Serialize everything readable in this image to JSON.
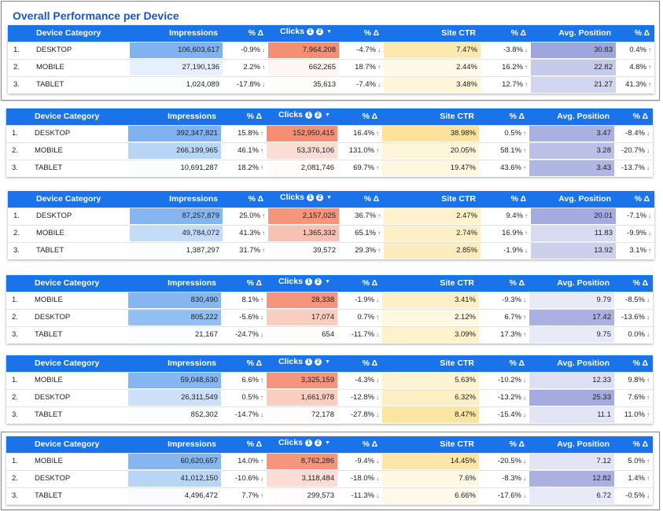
{
  "title": "Overall Performance per Device",
  "columns": {
    "device": "Device Category",
    "impressions": "Impressions",
    "delta": "% Δ",
    "clicks": "Clicks",
    "badge1": "1",
    "badge2": "2",
    "sort": "▼",
    "ctr": "Site CTR",
    "position": "Avg. Position"
  },
  "colors": {
    "header": "#1a73e8",
    "impressions": "#7fb2ef",
    "clicks": "#f48f76",
    "ctr": "#fbd66e",
    "position": "#8e96d6"
  },
  "tables": [
    {
      "rows": [
        {
          "idx": "1.",
          "device": "DESKTOP",
          "impressions": "106,603,617",
          "imp_d": "-0.9%",
          "imp_dir": "↓",
          "clicks": "7,964,208",
          "clk_d": "-4.7%",
          "clk_dir": "↓",
          "ctr": "7.47%",
          "ctr_d": "-3.8%",
          "ctr_dir": "↓",
          "pos": "30.83",
          "pos_d": "0.4%",
          "pos_dir": "↑",
          "imp_a": 1.0,
          "clk_a": 1.0,
          "ctr_a": 0.55,
          "pos_a": 0.85
        },
        {
          "idx": "2.",
          "device": "MOBILE",
          "impressions": "27,190,136",
          "imp_d": "2.2%",
          "imp_dir": "↑",
          "clicks": "662,265",
          "clk_d": "18.7%",
          "clk_dir": "↑",
          "ctr": "2.44%",
          "ctr_d": "16.2%",
          "ctr_dir": "↑",
          "pos": "22.82",
          "pos_d": "4.8%",
          "pos_dir": "↑",
          "imp_a": 0.2,
          "clk_a": 0.08,
          "ctr_a": 0.15,
          "pos_a": 0.5
        },
        {
          "idx": "3.",
          "device": "TABLET",
          "impressions": "1,024,089",
          "imp_d": "-17.8%",
          "imp_dir": "↓",
          "clicks": "35,613",
          "clk_d": "-7.4%",
          "clk_dir": "↓",
          "ctr": "3.48%",
          "ctr_d": "12.7%",
          "ctr_dir": "↑",
          "pos": "21.27",
          "pos_d": "41.3%",
          "pos_dir": "↑",
          "imp_a": 0.02,
          "clk_a": 0.02,
          "ctr_a": 0.25,
          "pos_a": 0.4
        }
      ]
    },
    {
      "rows": [
        {
          "idx": "1.",
          "device": "DESKTOP",
          "impressions": "392,347,821",
          "imp_d": "15.8%",
          "imp_dir": "↑",
          "clicks": "152,950,415",
          "clk_d": "16.4%",
          "clk_dir": "↑",
          "ctr": "38.98%",
          "ctr_d": "0.5%",
          "ctr_dir": "↑",
          "pos": "3.47",
          "pos_d": "-8.4%",
          "pos_dir": "↓",
          "imp_a": 1.0,
          "clk_a": 1.0,
          "ctr_a": 0.7,
          "pos_a": 0.75
        },
        {
          "idx": "2.",
          "device": "MOBILE",
          "impressions": "266,199,965",
          "imp_d": "46.1%",
          "imp_dir": "↑",
          "clicks": "53,376,106",
          "clk_d": "131.0%",
          "clk_dir": "↑",
          "ctr": "20.05%",
          "ctr_d": "58.1%",
          "ctr_dir": "↑",
          "pos": "3.28",
          "pos_d": "-20.7%",
          "pos_dir": "↓",
          "imp_a": 0.55,
          "clk_a": 0.3,
          "ctr_a": 0.25,
          "pos_a": 0.6
        },
        {
          "idx": "3.",
          "device": "TABLET",
          "impressions": "10,691,287",
          "imp_d": "18.2%",
          "imp_dir": "↑",
          "clicks": "2,081,746",
          "clk_d": "69.7%",
          "clk_dir": "↑",
          "ctr": "19.47%",
          "ctr_d": "43.6%",
          "ctr_dir": "↑",
          "pos": "3.43",
          "pos_d": "-13.7%",
          "pos_dir": "↓",
          "imp_a": 0.04,
          "clk_a": 0.03,
          "ctr_a": 0.22,
          "pos_a": 0.7
        }
      ]
    },
    {
      "rows": [
        {
          "idx": "1.",
          "device": "DESKTOP",
          "impressions": "87,257,879",
          "imp_d": "25.0%",
          "imp_dir": "↑",
          "clicks": "2,157,025",
          "clk_d": "36.7%",
          "clk_dir": "↑",
          "ctr": "2.47%",
          "ctr_d": "9.4%",
          "ctr_dir": "↑",
          "pos": "20.01",
          "pos_d": "-7.1%",
          "pos_dir": "↓",
          "imp_a": 0.95,
          "clk_a": 0.95,
          "ctr_a": 0.35,
          "pos_a": 0.8
        },
        {
          "idx": "2.",
          "device": "MOBILE",
          "impressions": "49,784,072",
          "imp_d": "41.3%",
          "imp_dir": "↑",
          "clicks": "1,365,332",
          "clk_d": "65.1%",
          "clk_dir": "↑",
          "ctr": "2.74%",
          "ctr_d": "16.9%",
          "ctr_dir": "↑",
          "pos": "11.83",
          "pos_d": "-9.9%",
          "pos_dir": "↓",
          "imp_a": 0.45,
          "clk_a": 0.55,
          "ctr_a": 0.4,
          "pos_a": 0.35
        },
        {
          "idx": "3.",
          "device": "TABLET",
          "impressions": "1,387,297",
          "imp_d": "31.7%",
          "imp_dir": "↑",
          "clicks": "39,572",
          "clk_d": "29.3%",
          "clk_dir": "↑",
          "ctr": "2.85%",
          "ctr_d": "-1.9%",
          "ctr_dir": "↓",
          "pos": "13.92",
          "pos_d": "3.1%",
          "pos_dir": "↑",
          "imp_a": 0.02,
          "clk_a": 0.02,
          "ctr_a": 0.45,
          "pos_a": 0.45
        }
      ]
    },
    {
      "rows": [
        {
          "idx": "1.",
          "device": "MOBILE",
          "impressions": "830,490",
          "imp_d": "8.1%",
          "imp_dir": "↑",
          "clicks": "28,338",
          "clk_d": "-1.9%",
          "clk_dir": "↓",
          "ctr": "3.41%",
          "ctr_d": "-9.3%",
          "ctr_dir": "↓",
          "pos": "9.79",
          "pos_d": "-8.5%",
          "pos_dir": "↓",
          "imp_a": 0.95,
          "clk_a": 0.95,
          "ctr_a": 0.4,
          "pos_a": 0.2
        },
        {
          "idx": "2.",
          "device": "DESKTOP",
          "impressions": "805,222",
          "imp_d": "-5.6%",
          "imp_dir": "↓",
          "clicks": "17,074",
          "clk_d": "0.7%",
          "clk_dir": "↑",
          "ctr": "2.12%",
          "ctr_d": "6.7%",
          "ctr_dir": "↑",
          "pos": "17.42",
          "pos_d": "-13.6%",
          "pos_dir": "↓",
          "imp_a": 0.85,
          "clk_a": 0.45,
          "ctr_a": 0.2,
          "pos_a": 0.75
        },
        {
          "idx": "3.",
          "device": "TABLET",
          "impressions": "21,167",
          "imp_d": "-24.7%",
          "imp_dir": "↓",
          "clicks": "654",
          "clk_d": "-11.7%",
          "clk_dir": "↓",
          "ctr": "3.09%",
          "ctr_d": "17.3%",
          "ctr_dir": "↑",
          "pos": "9.75",
          "pos_d": "0.0%",
          "pos_dir": "↓",
          "imp_a": 0.02,
          "clk_a": 0.02,
          "ctr_a": 0.35,
          "pos_a": 0.2
        }
      ]
    },
    {
      "rows": [
        {
          "idx": "1.",
          "device": "MOBILE",
          "impressions": "59,048,630",
          "imp_d": "6.6%",
          "imp_dir": "↑",
          "clicks": "3,325,159",
          "clk_d": "-4.3%",
          "clk_dir": "↓",
          "ctr": "5.63%",
          "ctr_d": "-10.2%",
          "ctr_dir": "↓",
          "pos": "12.33",
          "pos_d": "9.8%",
          "pos_dir": "↑",
          "imp_a": 0.95,
          "clk_a": 0.95,
          "ctr_a": 0.3,
          "pos_a": 0.3
        },
        {
          "idx": "2.",
          "device": "DESKTOP",
          "impressions": "26,311,549",
          "imp_d": "0.5%",
          "imp_dir": "↑",
          "clicks": "1,661,978",
          "clk_d": "-12.8%",
          "clk_dir": "↓",
          "ctr": "6.32%",
          "ctr_d": "-13.2%",
          "ctr_dir": "↓",
          "pos": "25.33",
          "pos_d": "7.6%",
          "pos_dir": "↑",
          "imp_a": 0.4,
          "clk_a": 0.45,
          "ctr_a": 0.4,
          "pos_a": 0.8
        },
        {
          "idx": "3.",
          "device": "TABLET",
          "impressions": "852,302",
          "imp_d": "-14.7%",
          "imp_dir": "↓",
          "clicks": "72,178",
          "clk_d": "-27.8%",
          "clk_dir": "↓",
          "ctr": "8.47%",
          "ctr_d": "-15.4%",
          "ctr_dir": "↓",
          "pos": "11.1",
          "pos_d": "11.0%",
          "pos_dir": "↑",
          "imp_a": 0.02,
          "clk_a": 0.03,
          "ctr_a": 0.65,
          "pos_a": 0.25
        }
      ]
    },
    {
      "rows": [
        {
          "idx": "1.",
          "device": "MOBILE",
          "impressions": "60,620,657",
          "imp_d": "14.0%",
          "imp_dir": "↑",
          "clicks": "8,762,286",
          "clk_d": "-9.4%",
          "clk_dir": "↓",
          "ctr": "14.45%",
          "ctr_d": "-20.5%",
          "ctr_dir": "↓",
          "pos": "7.12",
          "pos_d": "5.0%",
          "pos_dir": "↑",
          "imp_a": 0.95,
          "clk_a": 0.95,
          "ctr_a": 0.6,
          "pos_a": 0.25
        },
        {
          "idx": "2.",
          "device": "DESKTOP",
          "impressions": "41,012,150",
          "imp_d": "-10.6%",
          "imp_dir": "↓",
          "clicks": "3,118,484",
          "clk_d": "-18.0%",
          "clk_dir": "↓",
          "ctr": "7.6%",
          "ctr_d": "-8.3%",
          "ctr_dir": "↓",
          "pos": "12.82",
          "pos_d": "1.4%",
          "pos_dir": "↑",
          "imp_a": 0.55,
          "clk_a": 0.3,
          "ctr_a": 0.2,
          "pos_a": 0.75
        },
        {
          "idx": "3.",
          "device": "TABLET",
          "impressions": "4,496,472",
          "imp_d": "7.7%",
          "imp_dir": "↑",
          "clicks": "299,573",
          "clk_d": "-11.3%",
          "clk_dir": "↓",
          "ctr": "6.66%",
          "ctr_d": "-17.6%",
          "ctr_dir": "↓",
          "pos": "6.72",
          "pos_d": "-0.5%",
          "pos_dir": "↓",
          "imp_a": 0.05,
          "clk_a": 0.03,
          "ctr_a": 0.15,
          "pos_a": 0.2
        }
      ]
    }
  ]
}
